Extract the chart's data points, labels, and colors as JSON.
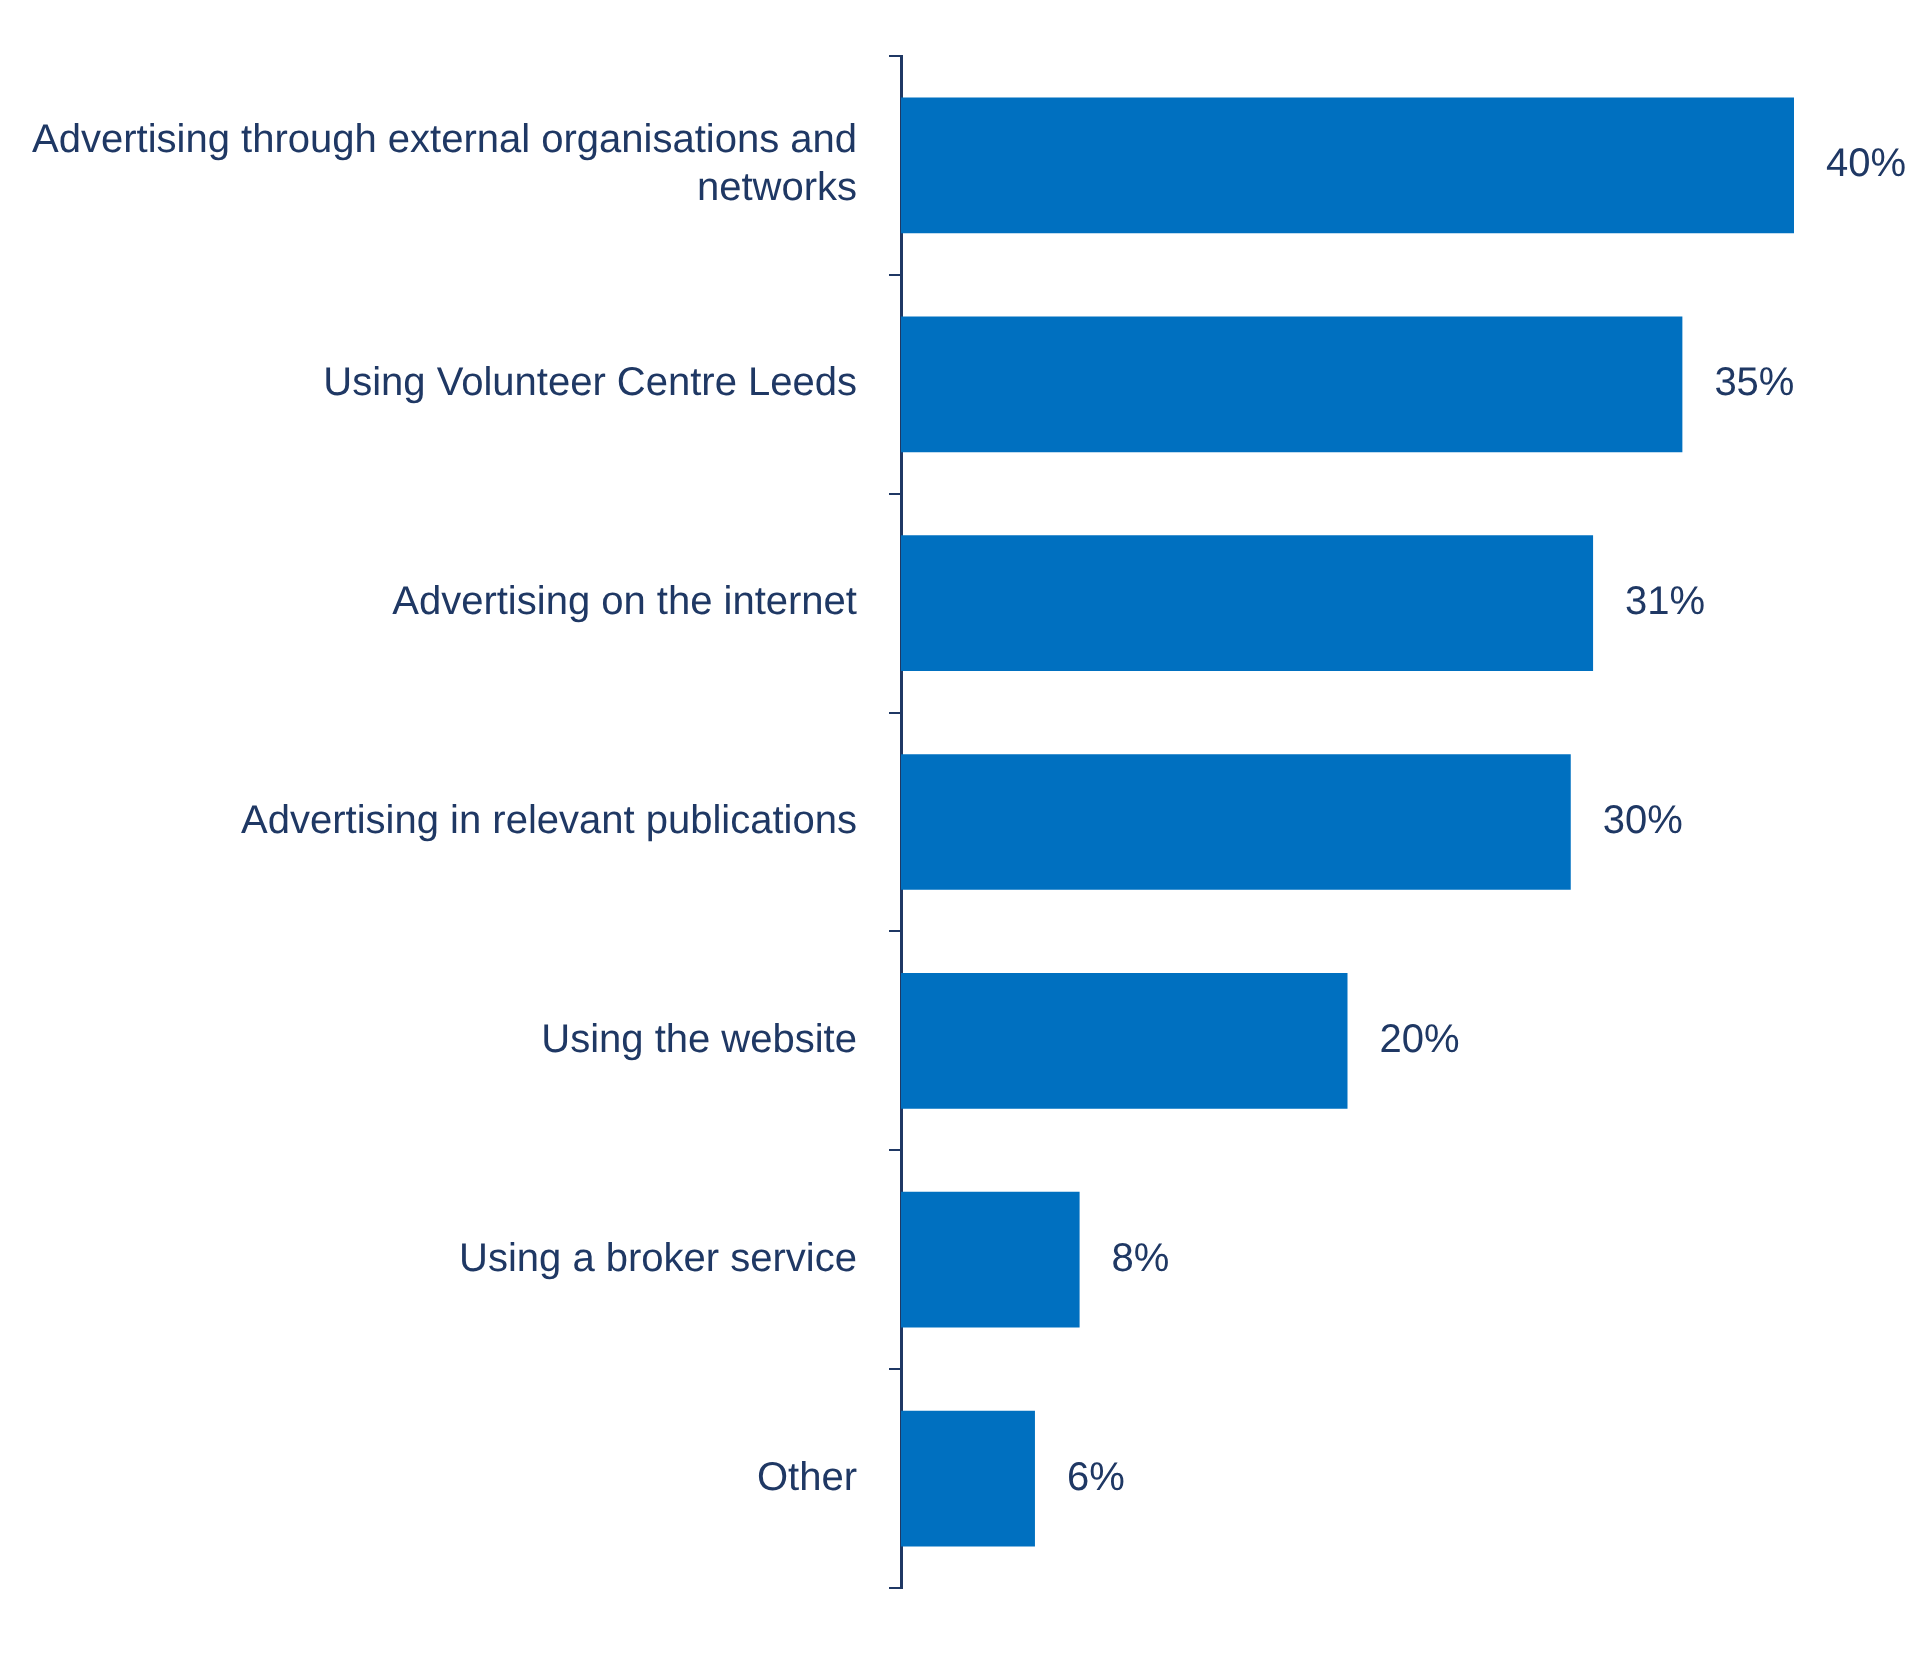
{
  "chart_data": {
    "type": "bar",
    "orientation": "horizontal",
    "categories": [
      "Advertising through external organisations and networks",
      "Using Volunteer Centre Leeds",
      "Advertising on the internet",
      "Advertising in relevant publications",
      "Using the website",
      "Using a broker service",
      "Other"
    ],
    "values": [
      40,
      35,
      31,
      30,
      20,
      8,
      6
    ],
    "value_labels": [
      "40%",
      "35%",
      "31%",
      "30%",
      "20%",
      "8%",
      "6%"
    ],
    "color": "#0070c0",
    "grid": false,
    "legend": false,
    "tick_labels": "y"
  }
}
